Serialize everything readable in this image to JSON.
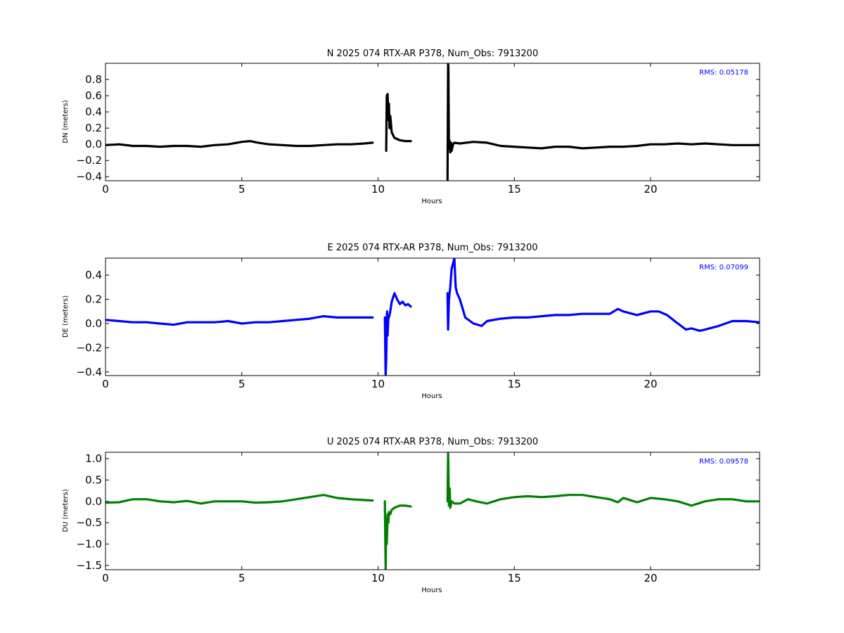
{
  "colors": {
    "north": "#000000",
    "east": "#0000ff",
    "up": "#008000",
    "rms_text": "#0000ff"
  },
  "chart_data": [
    {
      "type": "line",
      "title": "N 2025 074 RTX-AR  P378, Num_Obs: 7913200",
      "xlabel": "Hours",
      "ylabel": "DN (meters)",
      "rms_label": "RMS:  0.05178",
      "color": "#000000",
      "xlim": [
        0,
        24
      ],
      "ylim": [
        -0.45,
        1.0
      ],
      "xticks": [
        0,
        5,
        10,
        15,
        20
      ],
      "xtick_labels": [
        "0",
        "5",
        "10",
        "15",
        "20"
      ],
      "yticks": [
        -0.4,
        -0.2,
        0.0,
        0.2,
        0.4,
        0.6,
        0.8
      ],
      "ytick_labels": [
        "−0.4",
        "−0.2",
        "0.0",
        "0.2",
        "0.4",
        "0.6",
        "0.8"
      ],
      "grid": false,
      "segments": [
        {
          "x": [
            0.0,
            0.5,
            1.0,
            1.5,
            2.0,
            2.5,
            3.0,
            3.5,
            4.0,
            4.5,
            5.0,
            5.3,
            5.6,
            6.0,
            6.5,
            7.0,
            7.5,
            8.0,
            8.5,
            9.0,
            9.5,
            9.8
          ],
          "y": [
            -0.01,
            0.0,
            -0.02,
            -0.02,
            -0.03,
            -0.02,
            -0.02,
            -0.03,
            -0.01,
            0.0,
            0.03,
            0.04,
            0.02,
            0.0,
            -0.01,
            -0.02,
            -0.02,
            -0.01,
            0.0,
            0.0,
            0.01,
            0.02
          ]
        },
        {
          "x": [
            10.3,
            10.32,
            10.35,
            10.38,
            10.4,
            10.42,
            10.45,
            10.5,
            10.6,
            10.8,
            11.0,
            11.2
          ],
          "y": [
            -0.08,
            0.6,
            0.62,
            0.3,
            0.5,
            0.2,
            0.35,
            0.15,
            0.08,
            0.05,
            0.04,
            0.04
          ]
        },
        {
          "x": [
            12.55,
            12.57,
            12.58,
            12.6,
            12.62,
            12.65,
            12.68,
            12.7,
            12.75,
            12.8,
            13.0,
            13.5,
            14.0,
            14.5,
            15.0,
            15.5,
            16.0,
            16.5,
            17.0,
            17.5,
            18.0,
            18.5,
            19.0,
            19.5,
            20.0,
            20.5,
            21.0,
            21.5,
            22.0,
            22.5,
            23.0,
            23.5,
            24.0
          ],
          "y": [
            -0.45,
            1.0,
            0.95,
            -0.05,
            0.05,
            -0.1,
            0.02,
            -0.08,
            0.0,
            0.02,
            0.01,
            0.03,
            0.02,
            -0.02,
            -0.03,
            -0.04,
            -0.05,
            -0.03,
            -0.03,
            -0.05,
            -0.04,
            -0.03,
            -0.03,
            -0.02,
            0.0,
            0.0,
            0.01,
            0.0,
            0.01,
            0.0,
            -0.01,
            -0.01,
            -0.01
          ]
        }
      ]
    },
    {
      "type": "line",
      "title": "E 2025 074 RTX-AR  P378, Num_Obs: 7913200",
      "xlabel": "Hours",
      "ylabel": "DE (meters)",
      "rms_label": "RMS:  0.07099",
      "color": "#0000ff",
      "xlim": [
        0,
        24
      ],
      "ylim": [
        -0.43,
        0.54
      ],
      "xticks": [
        0,
        5,
        10,
        15,
        20
      ],
      "xtick_labels": [
        "0",
        "5",
        "10",
        "15",
        "20"
      ],
      "yticks": [
        -0.4,
        -0.2,
        0.0,
        0.2,
        0.4
      ],
      "ytick_labels": [
        "−0.4",
        "−0.2",
        "0.0",
        "0.2",
        "0.4"
      ],
      "grid": false,
      "segments": [
        {
          "x": [
            0.0,
            0.5,
            1.0,
            1.5,
            2.0,
            2.5,
            3.0,
            3.5,
            4.0,
            4.5,
            5.0,
            5.5,
            6.0,
            6.5,
            7.0,
            7.5,
            8.0,
            8.5,
            9.0,
            9.5,
            9.8
          ],
          "y": [
            0.03,
            0.02,
            0.01,
            0.01,
            0.0,
            -0.01,
            0.01,
            0.01,
            0.01,
            0.02,
            0.0,
            0.01,
            0.01,
            0.02,
            0.03,
            0.04,
            0.06,
            0.05,
            0.05,
            0.05,
            0.05
          ]
        },
        {
          "x": [
            10.25,
            10.28,
            10.3,
            10.33,
            10.35,
            10.38,
            10.4,
            10.45,
            10.5,
            10.6,
            10.7,
            10.8,
            10.9,
            11.0,
            11.1,
            11.2
          ],
          "y": [
            0.05,
            -0.43,
            -0.3,
            0.1,
            -0.1,
            0.06,
            0.05,
            0.1,
            0.18,
            0.25,
            0.2,
            0.16,
            0.18,
            0.15,
            0.16,
            0.14
          ]
        },
        {
          "x": [
            12.55,
            12.57,
            12.6,
            12.65,
            12.7,
            12.8,
            12.85,
            12.9,
            13.0,
            13.2,
            13.5,
            13.8,
            14.0,
            14.5,
            15.0,
            15.5,
            16.0,
            16.5,
            17.0,
            17.5,
            18.0,
            18.5,
            18.8,
            19.0,
            19.5,
            20.0,
            20.3,
            20.6,
            21.0,
            21.3,
            21.5,
            21.8,
            22.0,
            22.5,
            23.0,
            23.5,
            24.0
          ],
          "y": [
            0.25,
            -0.05,
            0.2,
            0.3,
            0.45,
            0.54,
            0.3,
            0.25,
            0.2,
            0.05,
            0.0,
            -0.02,
            0.02,
            0.04,
            0.05,
            0.05,
            0.06,
            0.07,
            0.07,
            0.08,
            0.08,
            0.08,
            0.12,
            0.1,
            0.07,
            0.1,
            0.1,
            0.07,
            0.0,
            -0.05,
            -0.04,
            -0.06,
            -0.05,
            -0.02,
            0.02,
            0.02,
            0.01
          ]
        }
      ]
    },
    {
      "type": "line",
      "title": "U 2025 074 RTX-AR  P378, Num_Obs: 7913200",
      "xlabel": "Hours",
      "ylabel": "DU (meters)",
      "rms_label": "RMS:  0.09578",
      "color": "#008000",
      "xlim": [
        0,
        24
      ],
      "ylim": [
        -1.6,
        1.15
      ],
      "xticks": [
        0,
        5,
        10,
        15,
        20
      ],
      "xtick_labels": [
        "0",
        "5",
        "10",
        "15",
        "20"
      ],
      "yticks": [
        -1.5,
        -1.0,
        -0.5,
        0.0,
        0.5,
        1.0
      ],
      "ytick_labels": [
        "−1.5",
        "−1.0",
        "−0.5",
        "0.0",
        "0.5",
        "1.0"
      ],
      "grid": false,
      "segments": [
        {
          "x": [
            0.0,
            0.5,
            1.0,
            1.5,
            2.0,
            2.5,
            3.0,
            3.5,
            4.0,
            4.5,
            5.0,
            5.5,
            6.0,
            6.5,
            7.0,
            7.5,
            8.0,
            8.5,
            9.0,
            9.5,
            9.8
          ],
          "y": [
            -0.03,
            -0.02,
            0.05,
            0.05,
            0.0,
            -0.02,
            0.01,
            -0.05,
            0.0,
            0.0,
            0.0,
            -0.03,
            -0.02,
            0.0,
            0.05,
            0.1,
            0.15,
            0.08,
            0.05,
            0.03,
            0.02
          ]
        },
        {
          "x": [
            10.25,
            10.28,
            10.3,
            10.32,
            10.35,
            10.38,
            10.4,
            10.45,
            10.5,
            10.6,
            10.8,
            11.0,
            11.2
          ],
          "y": [
            0.0,
            -1.6,
            -0.4,
            -1.0,
            -0.3,
            -0.5,
            -0.25,
            -0.3,
            -0.2,
            -0.15,
            -0.1,
            -0.1,
            -0.12
          ]
        },
        {
          "x": [
            12.55,
            12.57,
            12.58,
            12.6,
            12.63,
            12.65,
            12.7,
            12.8,
            13.0,
            13.3,
            13.6,
            14.0,
            14.5,
            15.0,
            15.5,
            16.0,
            16.5,
            17.0,
            17.5,
            18.0,
            18.5,
            18.8,
            19.0,
            19.5,
            20.0,
            20.5,
            21.0,
            21.5,
            22.0,
            22.5,
            23.0,
            23.5,
            24.0
          ],
          "y": [
            0.0,
            1.15,
            0.8,
            -0.1,
            0.3,
            -0.15,
            0.0,
            -0.05,
            -0.05,
            0.05,
            0.0,
            -0.05,
            0.05,
            0.1,
            0.12,
            0.1,
            0.12,
            0.15,
            0.15,
            0.1,
            0.05,
            -0.02,
            0.08,
            -0.02,
            0.08,
            0.05,
            0.0,
            -0.1,
            0.0,
            0.05,
            0.05,
            0.0,
            0.0
          ]
        }
      ]
    }
  ]
}
